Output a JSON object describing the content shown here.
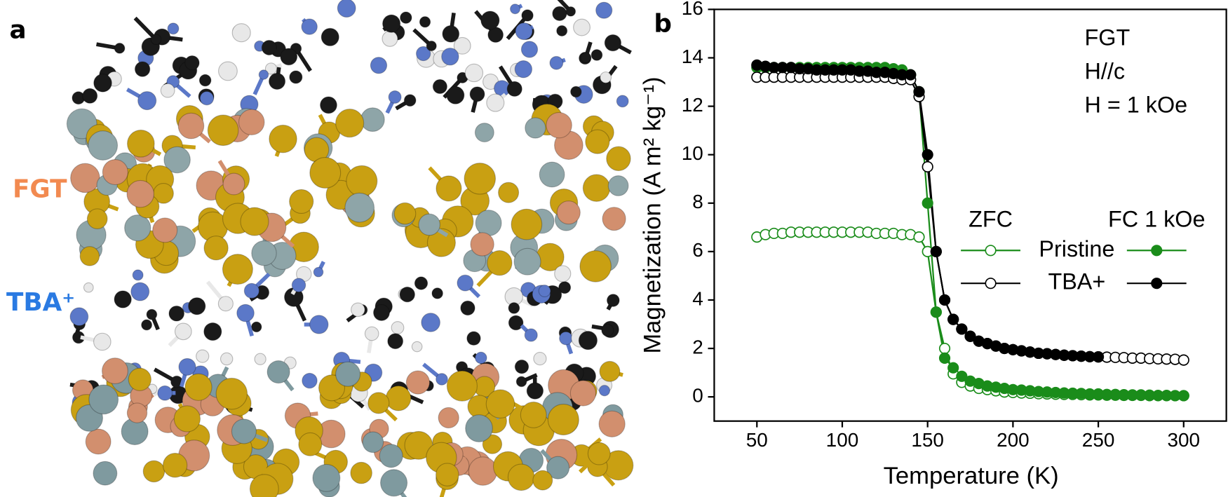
{
  "panel_a": {
    "label": "a",
    "layer_labels": [
      "FGT",
      "TBA⁺"
    ]
  },
  "chart_data": {
    "type": "line",
    "panel_label": "b",
    "xlabel": "Temperature (K)",
    "ylabel": "Magnetization (A m² kg⁻¹)",
    "annotations": [
      "FGT",
      "H//c",
      "H = 1 kOe"
    ],
    "xlim": [
      25,
      325
    ],
    "xticks": [
      50,
      100,
      150,
      200,
      250,
      300
    ],
    "ylim": [
      -1,
      16
    ],
    "yticks": [
      0,
      2,
      4,
      6,
      8,
      10,
      12,
      14,
      16
    ],
    "legend_columns": [
      "ZFC",
      "FC 1 kOe"
    ],
    "zfc_marker": "open",
    "fc_marker": "filled",
    "x": [
      50,
      55,
      60,
      65,
      70,
      75,
      80,
      85,
      90,
      95,
      100,
      105,
      110,
      115,
      120,
      125,
      130,
      135,
      140,
      145,
      150,
      155,
      160,
      165,
      170,
      175,
      180,
      185,
      190,
      195,
      200,
      205,
      210,
      215,
      220,
      225,
      230,
      235,
      240,
      245,
      250,
      255,
      260,
      265,
      270,
      275,
      280,
      285,
      290,
      295,
      300
    ],
    "series": [
      {
        "name": "Pristine",
        "color": "#1a8c1a",
        "zfc": [
          6.6,
          6.7,
          6.75,
          6.75,
          6.8,
          6.8,
          6.8,
          6.8,
          6.8,
          6.8,
          6.8,
          6.8,
          6.8,
          6.8,
          6.75,
          6.75,
          6.75,
          6.7,
          6.7,
          6.6,
          6.0,
          3.5,
          2.0,
          0.95,
          0.6,
          0.45,
          0.35,
          0.3,
          0.25,
          0.2,
          0.18,
          0.16,
          0.15,
          0.13,
          0.12,
          0.11,
          0.1,
          0.1,
          0.09,
          0.08,
          0.08,
          0.07,
          0.07,
          0.06,
          0.06,
          0.06,
          0.05,
          0.05,
          0.05,
          0.05,
          0.05
        ],
        "fc": [
          13.6,
          13.6,
          13.6,
          13.6,
          13.6,
          13.6,
          13.6,
          13.6,
          13.6,
          13.6,
          13.6,
          13.6,
          13.6,
          13.6,
          13.6,
          13.6,
          13.55,
          13.5,
          13.3,
          12.6,
          8.0,
          3.5,
          1.6,
          1.2,
          0.85,
          0.65,
          0.55,
          0.45,
          0.4,
          0.35,
          0.3,
          0.28,
          0.25,
          0.22,
          0.2,
          0.18,
          0.16,
          0.15,
          0.14,
          0.12,
          0.12,
          0.1,
          0.1,
          0.09,
          0.08,
          0.08,
          0.07,
          0.06,
          0.06,
          0.05,
          0.05
        ]
      },
      {
        "name": "TBA+",
        "color": "#000000",
        "zfc": [
          13.2,
          13.2,
          13.2,
          13.2,
          13.2,
          13.2,
          13.2,
          13.2,
          13.2,
          13.2,
          13.2,
          13.2,
          13.2,
          13.2,
          13.2,
          13.2,
          13.15,
          13.1,
          13.1,
          12.4,
          9.5,
          6.0,
          4.0,
          3.2,
          2.8,
          2.5,
          2.3,
          2.2,
          2.1,
          2.0,
          1.95,
          1.9,
          1.85,
          1.8,
          1.78,
          1.75,
          1.72,
          1.7,
          1.68,
          1.66,
          1.65,
          1.64,
          1.63,
          1.62,
          1.6,
          1.6,
          1.58,
          1.57,
          1.56,
          1.55,
          1.52
        ],
        "fc": [
          13.7,
          13.65,
          13.6,
          13.6,
          13.6,
          13.55,
          13.55,
          13.5,
          13.5,
          13.5,
          13.5,
          13.5,
          13.45,
          13.45,
          13.4,
          13.4,
          13.35,
          13.3,
          13.3,
          12.6,
          10.0,
          6.0,
          4.0,
          3.2,
          2.8,
          2.5,
          2.3,
          2.2,
          2.1,
          2.0,
          1.95,
          1.9,
          1.85,
          1.8,
          1.78,
          1.75,
          1.72,
          1.7,
          1.68,
          1.66,
          1.65,
          null,
          null,
          null,
          null,
          null,
          null,
          null,
          null,
          null,
          null
        ]
      }
    ]
  }
}
